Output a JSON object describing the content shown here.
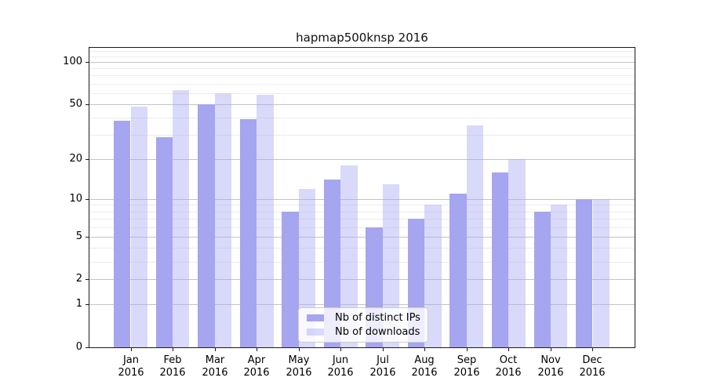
{
  "chart_data": {
    "type": "bar",
    "title": "hapmap500knsp 2016",
    "categories": [
      "Jan",
      "Feb",
      "Mar",
      "Apr",
      "May",
      "Jun",
      "Jul",
      "Aug",
      "Sep",
      "Oct",
      "Nov",
      "Dec"
    ],
    "x_year_label": "2016",
    "series": [
      {
        "name": "Nb of distinct IPs",
        "color": "#a5a5f0",
        "opacity": 1,
        "values": [
          38,
          29,
          50,
          39,
          8,
          14,
          6,
          7,
          11,
          16,
          8,
          10
        ]
      },
      {
        "name": "Nb of downloads",
        "color": "#a5a5f0",
        "opacity": 0.42,
        "rendered_color": "#d9d9f7",
        "values": [
          48,
          63,
          60,
          58,
          12,
          18,
          13,
          9,
          35,
          20,
          9,
          10
        ]
      }
    ],
    "yscale": "symlog",
    "ylim": [
      0,
      128
    ],
    "ytick_values": [
      100,
      50,
      20,
      10,
      5,
      2,
      1,
      0
    ],
    "major_gridlines": [
      1,
      2,
      5,
      10,
      20,
      50,
      100
    ],
    "minor_gridlines": [
      3,
      4,
      6,
      7,
      8,
      9,
      30,
      40,
      60,
      70,
      80,
      90,
      110,
      120
    ],
    "grid": "both",
    "legend_position": "lower-center"
  }
}
